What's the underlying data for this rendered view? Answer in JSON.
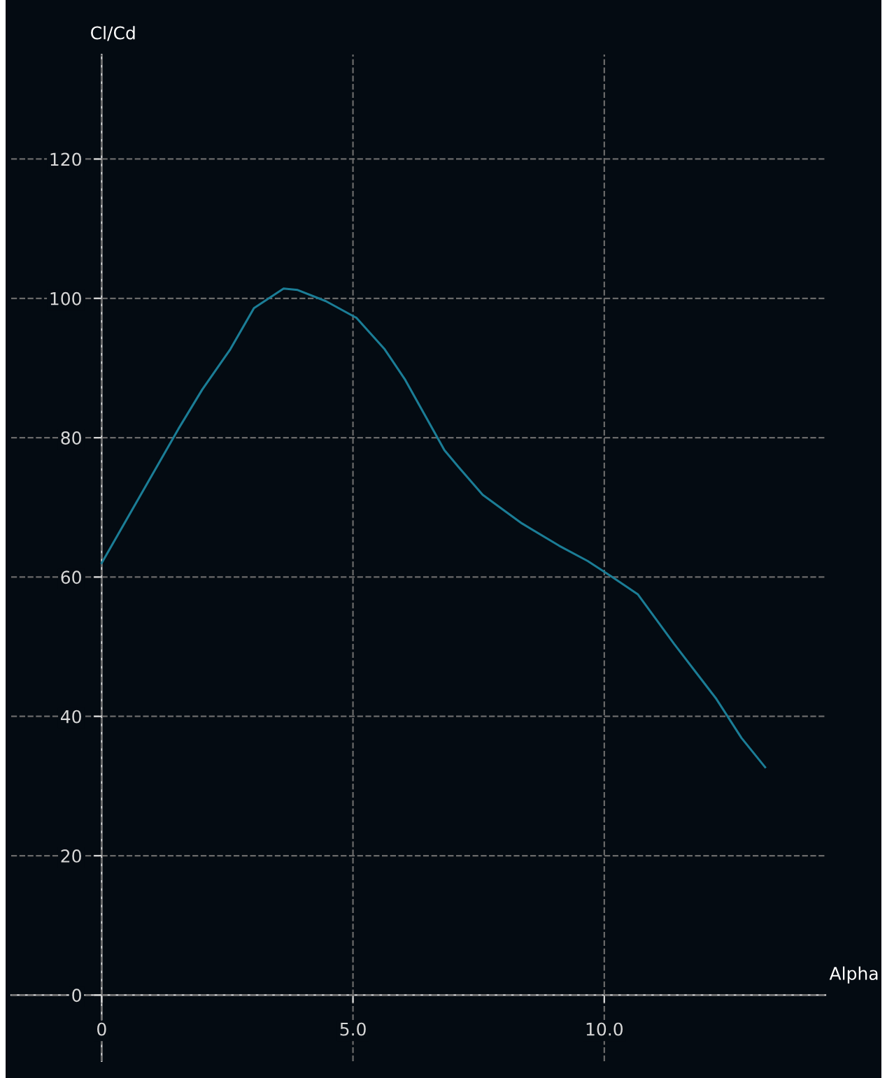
{
  "chart_data": {
    "type": "line",
    "xlabel": "Alpha",
    "ylabel": "Cl/Cd",
    "series": [
      {
        "color": "#1b7d96",
        "x": [
          0,
          1.53,
          2.0,
          2.56,
          3.03,
          3.62,
          3.9,
          4.46,
          5.07,
          5.63,
          6.04,
          6.82,
          7.1,
          7.58,
          8.36,
          9.1,
          9.67,
          10.14,
          10.67,
          11.39,
          12.23,
          12.73,
          13.2
        ],
        "values": [
          62,
          81.3,
          86.9,
          92.7,
          98.6,
          101.4,
          101.2,
          99.6,
          97.2,
          92.7,
          88.3,
          78.2,
          75.8,
          71.8,
          67.7,
          64.5,
          62.3,
          60.1,
          57.5,
          50.4,
          42.5,
          36.9,
          32.7
        ]
      }
    ],
    "xlim": [
      -1.8,
      14.4
    ],
    "ylim": [
      -9.5,
      135
    ],
    "xticks": [
      0,
      {
        "value": 5,
        "label": "5.0"
      },
      {
        "value": 10,
        "label": "10.0"
      }
    ],
    "yticks": [
      0,
      20,
      40,
      60,
      80,
      100,
      120
    ],
    "grid": true,
    "marker": "none",
    "line_style": "solid",
    "legend": false
  }
}
